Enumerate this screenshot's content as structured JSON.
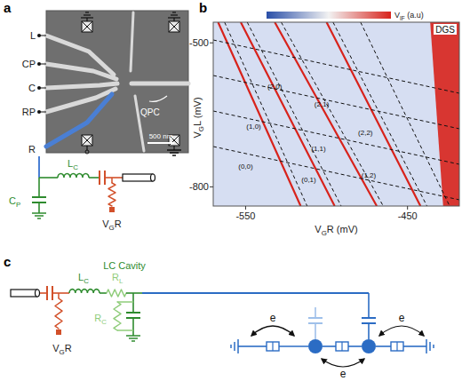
{
  "panel_labels": [
    "a",
    "b",
    "c"
  ],
  "panel_a": {
    "gates": [
      "L",
      "CP",
      "C",
      "RP",
      "R"
    ],
    "qpc": "QPC",
    "scale_bar": "500 nm",
    "cp": {
      "base": "C",
      "sub": "P"
    },
    "lc": {
      "base": "L",
      "sub": "C"
    },
    "vgr": {
      "base": "V",
      "sub": "G",
      "tail": "R"
    }
  },
  "chart_data": {
    "type": "line",
    "x_label": {
      "base": "V",
      "sub": "G",
      "tail": "R (mV)"
    },
    "y_label": {
      "base": "V",
      "sub": "G",
      "tail": "L (mV)"
    },
    "colorbar": {
      "label": {
        "base": "V",
        "sub": "IF",
        "tail": " (a.u)"
      },
      "colors": [
        "#2a4fa8",
        "#f2f2f2",
        "#d8231c"
      ]
    },
    "xlim": [
      -570,
      -418
    ],
    "ylim": [
      -840,
      -457
    ],
    "xticks": [
      -550,
      -450
    ],
    "yticks": [
      -500,
      -800
    ],
    "grid": false,
    "series": [
      {
        "color": "#d8231c",
        "line_style": "solid",
        "x": [
          -567,
          -516,
          null,
          -553,
          -495,
          null,
          -532,
          -469,
          null,
          -500,
          -442
        ],
        "values": [
          -457,
          -840,
          null,
          -457,
          -840,
          null,
          -457,
          -840,
          null,
          -457,
          -840
        ]
      },
      {
        "color": "#111111",
        "line_style": "dashed",
        "x": [
          -570,
          -418,
          null,
          -570,
          -418,
          null,
          -570,
          -418,
          null,
          -570,
          -418,
          null,
          -563,
          -512,
          null,
          -549,
          -491,
          null,
          -528,
          -465,
          null,
          -496,
          -438,
          null,
          -479,
          -424
        ],
        "values": [
          -494,
          -605,
          null,
          -568,
          -679,
          null,
          -642,
          -753,
          null,
          -716,
          -827,
          null,
          -457,
          -840,
          null,
          -457,
          -840,
          null,
          -457,
          -840,
          null,
          -457,
          -840,
          null,
          -457,
          -840
        ]
      }
    ],
    "annotations": [
      {
        "text": "(2,0)",
        "x": -532,
        "y": -596
      },
      {
        "text": "(2,1)",
        "x": -503,
        "y": -633
      },
      {
        "text": "(1,0)",
        "x": -545,
        "y": -679
      },
      {
        "text": "(1,1)",
        "x": -505,
        "y": -725
      },
      {
        "text": "(2,2)",
        "x": -476,
        "y": -692
      },
      {
        "text": "(0,0)",
        "x": -550,
        "y": -762
      },
      {
        "text": "(1,2)",
        "x": -474,
        "y": -781
      },
      {
        "text": "(0,1)",
        "x": -511,
        "y": -790
      }
    ],
    "region": {
      "label": "DGS",
      "color": "#d8231c",
      "x": [
        -436,
        -418,
        -418,
        -428
      ],
      "values": [
        -457,
        -457,
        -840,
        -840
      ]
    }
  },
  "panel_c": {
    "title": "LC Cavity",
    "lc": {
      "base": "L",
      "sub": "C"
    },
    "rl": {
      "base": "R",
      "sub": "L"
    },
    "rc": {
      "base": "R",
      "sub": "C"
    },
    "vgr": {
      "base": "V",
      "sub": "G",
      "tail": "R"
    },
    "electrons": [
      "e",
      "e",
      "e"
    ]
  }
}
